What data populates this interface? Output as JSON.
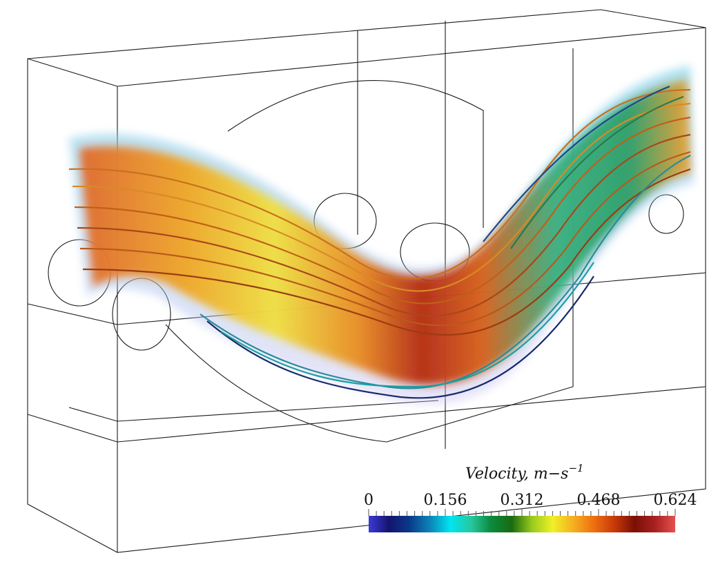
{
  "colorbar": {
    "title_main": "Velocity, m−s",
    "title_exponent": "−1",
    "tick_labels": [
      "0",
      "0.156",
      "0.312",
      "0.468",
      "0.624"
    ],
    "range": [
      0,
      0.624
    ],
    "colors": [
      "#3b3bd6",
      "#14146e",
      "#0a3a8a",
      "#0b84b8",
      "#00e5f0",
      "#28c8a0",
      "#0a8a3c",
      "#1a6a10",
      "#9acb1c",
      "#f0f028",
      "#f5b020",
      "#f07010",
      "#c83a0a",
      "#7a1004",
      "#a82020",
      "#e65050"
    ]
  },
  "colors": {
    "wireframe": "#1a1a1a",
    "background": "#ffffff"
  }
}
